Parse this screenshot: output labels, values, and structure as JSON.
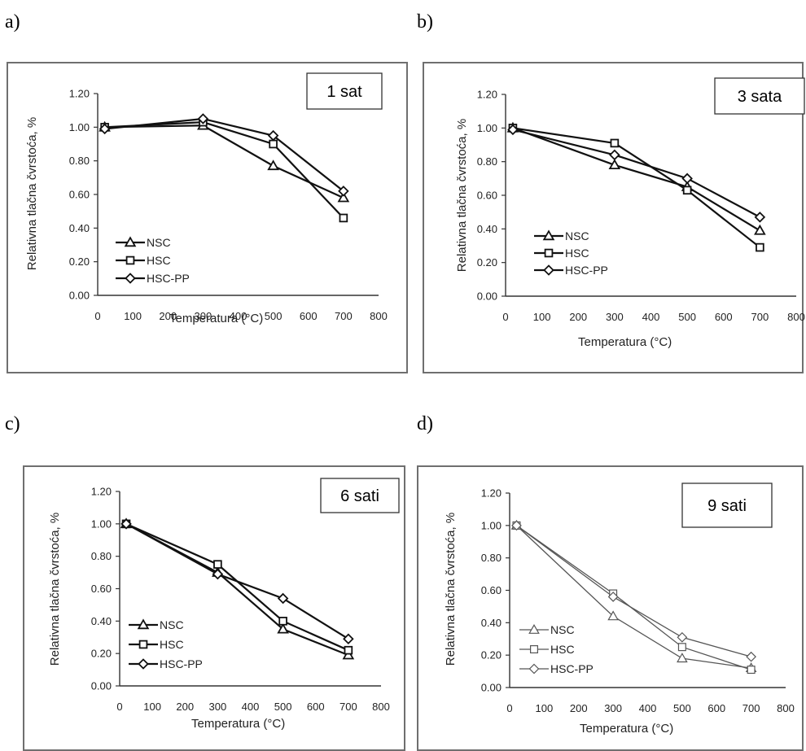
{
  "chart_data": [
    {
      "panel": "a)",
      "type": "line",
      "annotation": "1 sat",
      "xlabel": "Temperatura  (°C)",
      "ylabel": "Relativna tlačna čvrstoća, %",
      "xlim": [
        0,
        800
      ],
      "ylim": [
        0,
        1.2
      ],
      "xticks": [
        "0",
        "100",
        "200",
        "300",
        "400",
        "500",
        "600",
        "700",
        "800"
      ],
      "yticks": [
        "0.00",
        "0.20",
        "0.40",
        "0.60",
        "0.80",
        "1.00",
        "1.20"
      ],
      "legend": "bottom-left",
      "series": [
        {
          "name": "NSC",
          "marker": "triangle",
          "x": [
            20,
            300,
            500,
            700
          ],
          "y": [
            1.0,
            1.01,
            0.77,
            0.58
          ]
        },
        {
          "name": "HSC",
          "marker": "square",
          "x": [
            20,
            300,
            500,
            700
          ],
          "y": [
            1.0,
            1.03,
            0.9,
            0.46
          ]
        },
        {
          "name": "HSC-PP",
          "marker": "diamond",
          "x": [
            20,
            300,
            500,
            700
          ],
          "y": [
            0.99,
            1.05,
            0.95,
            0.62
          ]
        }
      ]
    },
    {
      "panel": "b)",
      "type": "line",
      "annotation": "3 sata",
      "xlabel": "Temperatura (°C)",
      "ylabel": "Relativna tlačna čvrstoća, %",
      "xlim": [
        0,
        800
      ],
      "ylim": [
        0,
        1.2
      ],
      "xticks": [
        "0",
        "100",
        "200",
        "300",
        "400",
        "500",
        "600",
        "700",
        "800"
      ],
      "yticks": [
        "0.00",
        "0.20",
        "0.40",
        "0.60",
        "0.80",
        "1.00",
        "1.20"
      ],
      "legend": "bottom-left",
      "series": [
        {
          "name": "NSC",
          "marker": "triangle",
          "x": [
            20,
            300,
            500,
            700
          ],
          "y": [
            1.0,
            0.78,
            0.65,
            0.39
          ]
        },
        {
          "name": "HSC",
          "marker": "square",
          "x": [
            20,
            300,
            500,
            700
          ],
          "y": [
            1.0,
            0.91,
            0.63,
            0.29
          ]
        },
        {
          "name": "HSC-PP",
          "marker": "diamond",
          "x": [
            20,
            300,
            500,
            700
          ],
          "y": [
            0.99,
            0.84,
            0.7,
            0.47
          ]
        }
      ]
    },
    {
      "panel": "c)",
      "type": "line",
      "annotation": "6 sati",
      "xlabel": "Temperatura (°C)",
      "ylabel": "Relativna tlačna čvrstoća, %",
      "xlim": [
        0,
        800
      ],
      "ylim": [
        0,
        1.2
      ],
      "xticks": [
        "0",
        "100",
        "200",
        "300",
        "400",
        "500",
        "600",
        "700",
        "800"
      ],
      "yticks": [
        "0.00",
        "0.20",
        "0.40",
        "0.60",
        "0.80",
        "1.00",
        "1.20"
      ],
      "legend": "bottom-left",
      "series": [
        {
          "name": "NSC",
          "marker": "triangle",
          "x": [
            20,
            300,
            500,
            700
          ],
          "y": [
            1.0,
            0.7,
            0.35,
            0.19
          ]
        },
        {
          "name": "HSC",
          "marker": "square",
          "x": [
            20,
            300,
            500,
            700
          ],
          "y": [
            1.0,
            0.75,
            0.4,
            0.22
          ]
        },
        {
          "name": "HSC-PP",
          "marker": "diamond",
          "x": [
            20,
            300,
            500,
            700
          ],
          "y": [
            1.0,
            0.69,
            0.54,
            0.29
          ]
        }
      ]
    },
    {
      "panel": "d)",
      "type": "line",
      "annotation": "9 sati",
      "xlabel": "Temperatura (°C)",
      "ylabel": "Relativna tlačna čvrstoća, %",
      "xlim": [
        0,
        800
      ],
      "ylim": [
        0,
        1.2
      ],
      "xticks": [
        "0",
        "100",
        "200",
        "300",
        "400",
        "500",
        "600",
        "700",
        "800"
      ],
      "yticks": [
        "0.00",
        "0.20",
        "0.40",
        "0.60",
        "0.80",
        "1.00",
        "1.20"
      ],
      "legend": "bottom-left",
      "series": [
        {
          "name": "NSC",
          "marker": "triangle",
          "x": [
            20,
            300,
            500,
            700
          ],
          "y": [
            1.0,
            0.44,
            0.18,
            0.12
          ]
        },
        {
          "name": "HSC",
          "marker": "square",
          "x": [
            20,
            300,
            500,
            700
          ],
          "y": [
            1.0,
            0.58,
            0.25,
            0.11
          ]
        },
        {
          "name": "HSC-PP",
          "marker": "diamond",
          "x": [
            20,
            300,
            500,
            700
          ],
          "y": [
            1.0,
            0.56,
            0.31,
            0.19
          ]
        }
      ]
    }
  ]
}
